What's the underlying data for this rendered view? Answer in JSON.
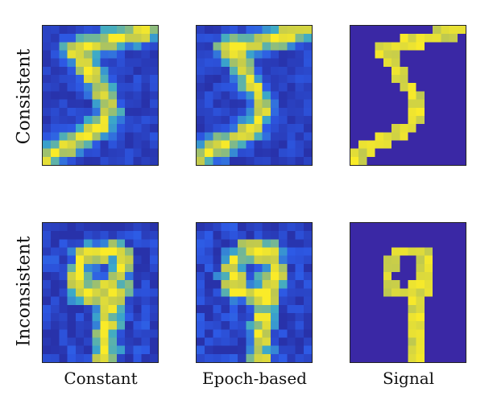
{
  "rows": [
    {
      "label": "Consistent",
      "digit": "5"
    },
    {
      "label": "Inconsistent",
      "digit": "9"
    }
  ],
  "columns": [
    {
      "label": "Constant",
      "style": "noisy"
    },
    {
      "label": "Epoch-based",
      "style": "noisy"
    },
    {
      "label": "Signal",
      "style": "clean"
    }
  ],
  "colors": {
    "background_clean": "#3b28a8",
    "low": "#2a3fd6",
    "mid": "#3f88e8",
    "high": "#f5e52a",
    "peak": "#ffff30"
  }
}
